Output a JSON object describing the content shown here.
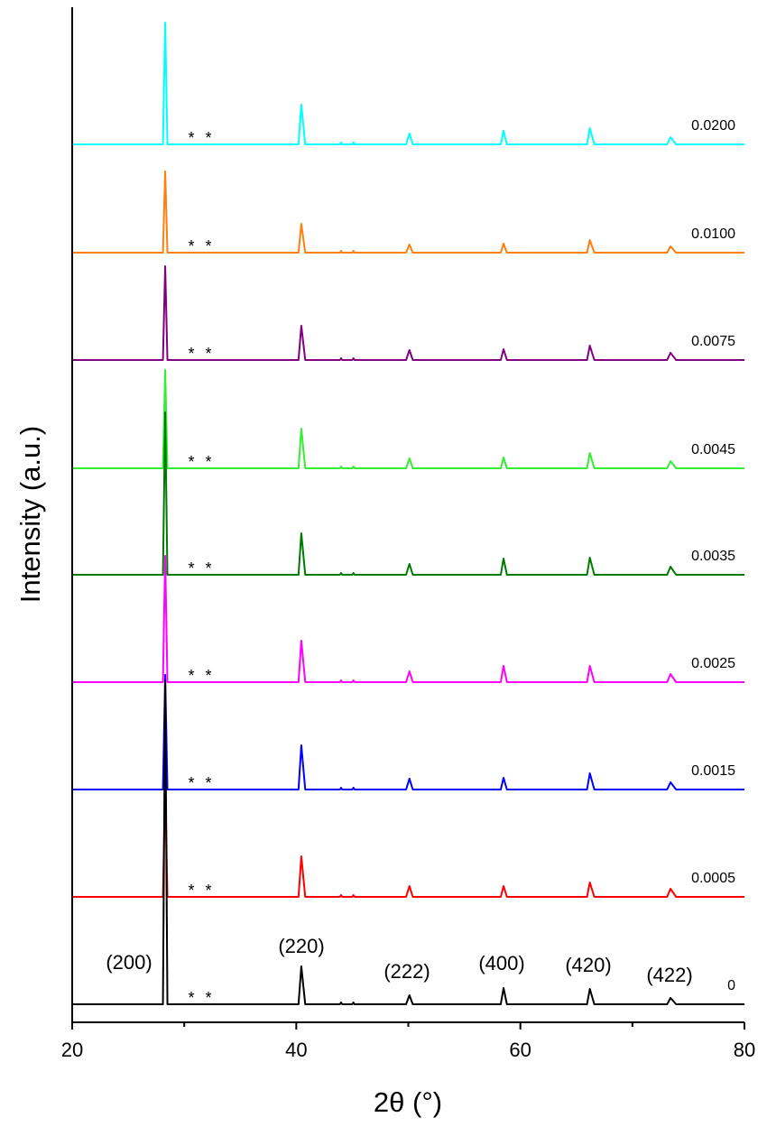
{
  "chart_data": {
    "type": "line",
    "xlabel": "2θ (°)",
    "ylabel": "Intensity (a.u.)",
    "xlim": [
      20,
      80
    ],
    "xticks": [
      20,
      40,
      60,
      80
    ],
    "minor_xticks": [
      30,
      50,
      70
    ],
    "ylim": [
      0,
      1125
    ],
    "peak_labels": [
      "(200)",
      "(220)",
      "(222)",
      "(400)",
      "(420)",
      "(422)"
    ],
    "impurity_marker": "*",
    "x": [
      20,
      28.1,
      28.3,
      28.5,
      40.2,
      40.45,
      40.8,
      43.9,
      44.0,
      44.1,
      45.0,
      45.1,
      45.2,
      49.8,
      50.1,
      50.4,
      58.25,
      58.5,
      58.8,
      65.95,
      66.2,
      66.6,
      73.1,
      73.4,
      73.9,
      80
    ],
    "series": [
      {
        "name": "0",
        "color": "#000000",
        "values": [
          20,
          20,
          378,
          20,
          20,
          62,
          20,
          20,
          22,
          20,
          20,
          22,
          20,
          20,
          30,
          20,
          20,
          38,
          20,
          20,
          37,
          20,
          20,
          27,
          20,
          20
        ]
      },
      {
        "name": "0.0005",
        "color": "#ff0000",
        "values": [
          139,
          139,
          268,
          139,
          139,
          184,
          139,
          139,
          141,
          139,
          139,
          141,
          139,
          139,
          151,
          139,
          139,
          151,
          139,
          139,
          155,
          139,
          139,
          148,
          139,
          139
        ]
      },
      {
        "name": "0.0015",
        "color": "#0000ff",
        "values": [
          258,
          258,
          385,
          258,
          258,
          307,
          258,
          258,
          260,
          258,
          258,
          260,
          258,
          258,
          270,
          258,
          258,
          271,
          258,
          258,
          276,
          258,
          258,
          266,
          258,
          258
        ]
      },
      {
        "name": "0.0025",
        "color": "#ff00ff",
        "values": [
          377,
          377,
          517,
          377,
          377,
          423,
          377,
          377,
          379,
          377,
          377,
          379,
          377,
          377,
          389,
          377,
          377,
          395,
          377,
          377,
          395,
          377,
          377,
          386,
          377,
          377
        ]
      },
      {
        "name": "0.0035",
        "color": "#007a00",
        "values": [
          496,
          496,
          676,
          496,
          496,
          542,
          496,
          496,
          498,
          496,
          496,
          498,
          496,
          496,
          508,
          496,
          496,
          514,
          496,
          496,
          515,
          496,
          496,
          505,
          496,
          496
        ]
      },
      {
        "name": "0.0045",
        "color": "#33ee33",
        "values": [
          614,
          614,
          723,
          614,
          614,
          658,
          614,
          614,
          616,
          614,
          614,
          616,
          614,
          614,
          625,
          614,
          614,
          626,
          614,
          614,
          631,
          614,
          614,
          622,
          614,
          614
        ]
      },
      {
        "name": "0.0075",
        "color": "#800080",
        "values": [
          734,
          734,
          838,
          734,
          734,
          772,
          734,
          734,
          736,
          734,
          734,
          736,
          734,
          734,
          745,
          734,
          734,
          746,
          734,
          734,
          750,
          734,
          734,
          742,
          734,
          734
        ]
      },
      {
        "name": "0.0100",
        "color": "#ff7f0e",
        "values": [
          853,
          853,
          943,
          853,
          853,
          885,
          853,
          853,
          855,
          853,
          853,
          855,
          853,
          853,
          862,
          853,
          853,
          863,
          853,
          853,
          867,
          853,
          853,
          860,
          853,
          853
        ]
      },
      {
        "name": "0.0200",
        "color": "#00ffff",
        "values": [
          973,
          973,
          1108,
          973,
          973,
          1017,
          973,
          973,
          975,
          973,
          973,
          975,
          973,
          973,
          985,
          973,
          973,
          988,
          973,
          973,
          991,
          973,
          973,
          981,
          973,
          973
        ]
      }
    ]
  }
}
